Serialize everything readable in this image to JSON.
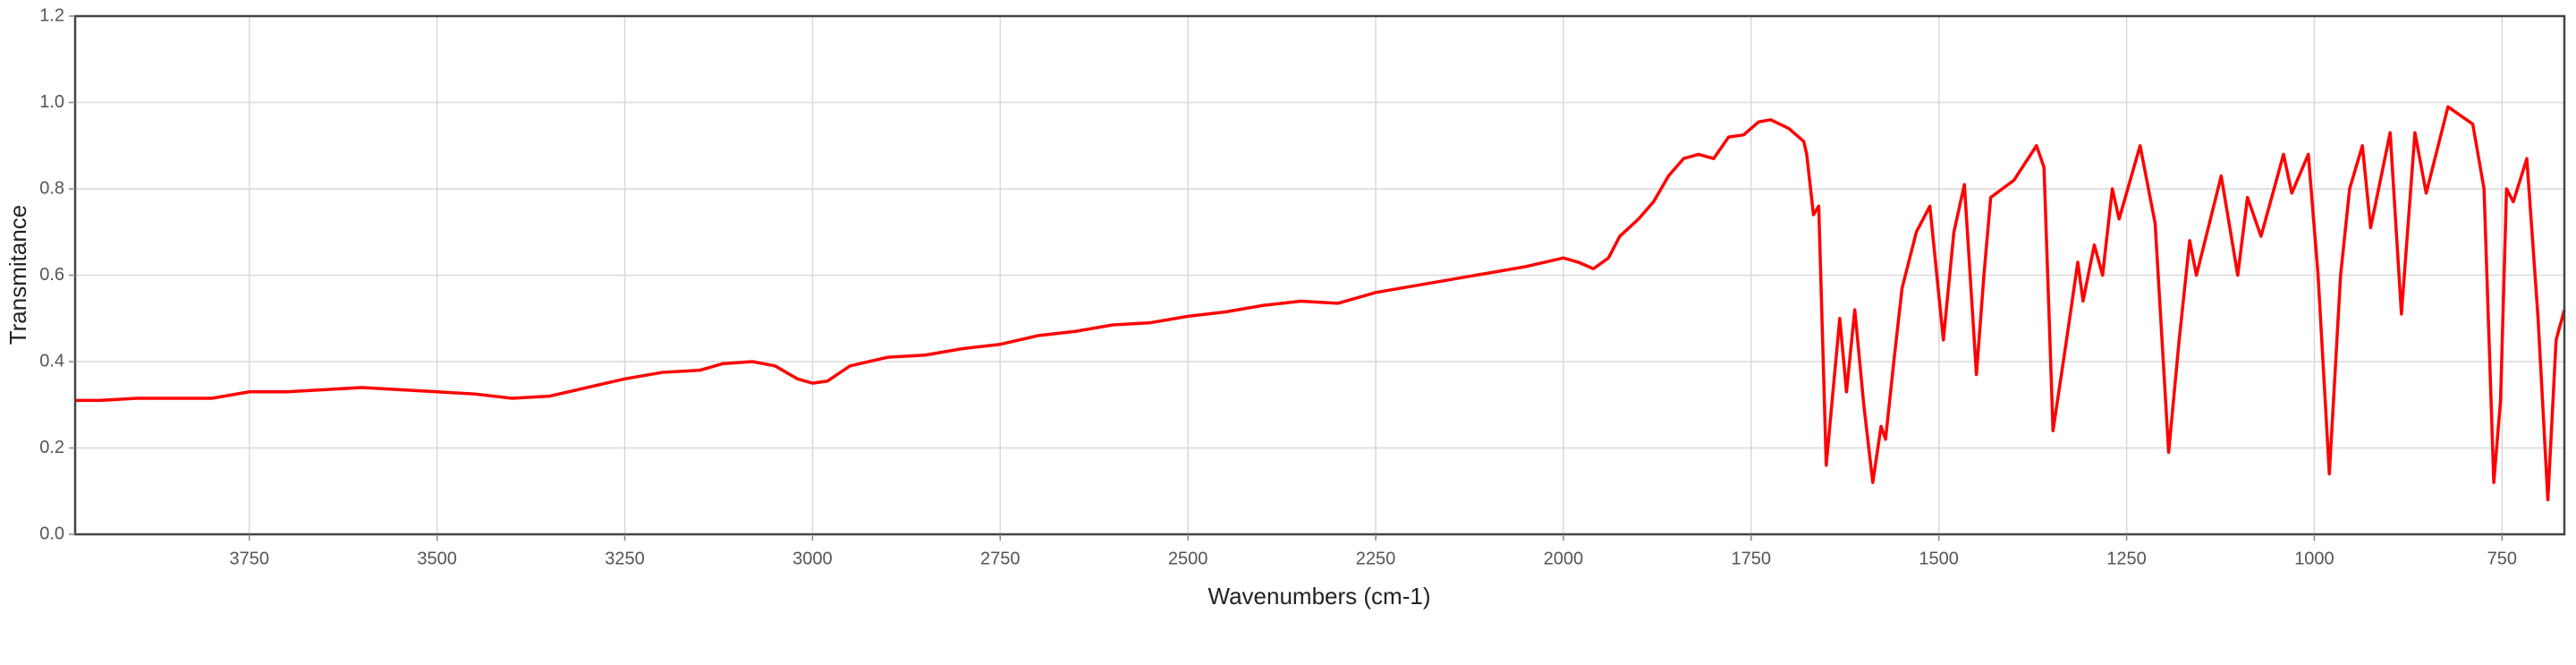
{
  "chart_data": {
    "type": "line",
    "xlabel": "Wavenumbers (cm-1)",
    "ylabel": "Transmitance",
    "color": "#ff0000",
    "grid": true,
    "xlim": [
      3982,
      667
    ],
    "ylim": [
      0,
      1.2
    ],
    "xticks": [
      3750,
      3500,
      3250,
      3000,
      2750,
      2500,
      2250,
      2000,
      1750,
      1500,
      1250,
      1000,
      750
    ],
    "yticks": [
      {
        "value": 0,
        "label": "0.0"
      },
      0.2,
      0.4,
      0.6,
      0.8,
      {
        "value": 1,
        "label": "1.0"
      },
      1.2
    ],
    "x": [
      3982,
      3950,
      3900,
      3850,
      3800,
      3750,
      3700,
      3650,
      3600,
      3550,
      3500,
      3450,
      3400,
      3350,
      3300,
      3250,
      3200,
      3150,
      3120,
      3080,
      3050,
      3020,
      3000,
      2980,
      2950,
      2900,
      2850,
      2800,
      2750,
      2700,
      2650,
      2600,
      2550,
      2500,
      2450,
      2400,
      2350,
      2300,
      2250,
      2200,
      2150,
      2100,
      2050,
      2000,
      1980,
      1960,
      1940,
      1925,
      1900,
      1880,
      1860,
      1840,
      1820,
      1800,
      1780,
      1760,
      1740,
      1724,
      1700,
      1680,
      1676,
      1667,
      1660,
      1650,
      1640,
      1632,
      1623,
      1612,
      1600,
      1588,
      1577,
      1571,
      1560,
      1549,
      1530,
      1512,
      1494,
      1480,
      1466,
      1450,
      1440,
      1431,
      1400,
      1370,
      1360,
      1348,
      1330,
      1315,
      1308,
      1293,
      1282,
      1269,
      1260,
      1232,
      1212,
      1194,
      1180,
      1166,
      1157,
      1124,
      1102,
      1089,
      1071,
      1041,
      1030,
      1008,
      995,
      980,
      965,
      953,
      936,
      925,
      899,
      884,
      866,
      851,
      822,
      789,
      774,
      761,
      752,
      744,
      735,
      717,
      702,
      689,
      678,
      667
    ],
    "values": [
      0.31,
      0.31,
      0.315,
      0.315,
      0.315,
      0.33,
      0.33,
      0.335,
      0.34,
      0.335,
      0.33,
      0.325,
      0.315,
      0.32,
      0.34,
      0.36,
      0.375,
      0.38,
      0.395,
      0.4,
      0.39,
      0.36,
      0.35,
      0.355,
      0.39,
      0.41,
      0.415,
      0.43,
      0.44,
      0.46,
      0.47,
      0.485,
      0.49,
      0.505,
      0.515,
      0.53,
      0.54,
      0.535,
      0.56,
      0.575,
      0.59,
      0.605,
      0.62,
      0.64,
      0.63,
      0.615,
      0.64,
      0.69,
      0.73,
      0.77,
      0.83,
      0.87,
      0.88,
      0.87,
      0.92,
      0.925,
      0.955,
      0.96,
      0.94,
      0.91,
      0.88,
      0.74,
      0.76,
      0.16,
      0.35,
      0.5,
      0.33,
      0.52,
      0.3,
      0.12,
      0.25,
      0.22,
      0.4,
      0.57,
      0.7,
      0.76,
      0.45,
      0.7,
      0.81,
      0.37,
      0.6,
      0.78,
      0.82,
      0.9,
      0.85,
      0.24,
      0.45,
      0.63,
      0.54,
      0.67,
      0.6,
      0.8,
      0.73,
      0.9,
      0.72,
      0.19,
      0.45,
      0.68,
      0.6,
      0.83,
      0.6,
      0.78,
      0.69,
      0.88,
      0.79,
      0.88,
      0.6,
      0.14,
      0.6,
      0.8,
      0.9,
      0.71,
      0.93,
      0.51,
      0.93,
      0.79,
      0.99,
      0.95,
      0.8,
      0.12,
      0.31,
      0.8,
      0.77,
      0.87,
      0.5,
      0.08,
      0.45,
      0.52
    ]
  }
}
